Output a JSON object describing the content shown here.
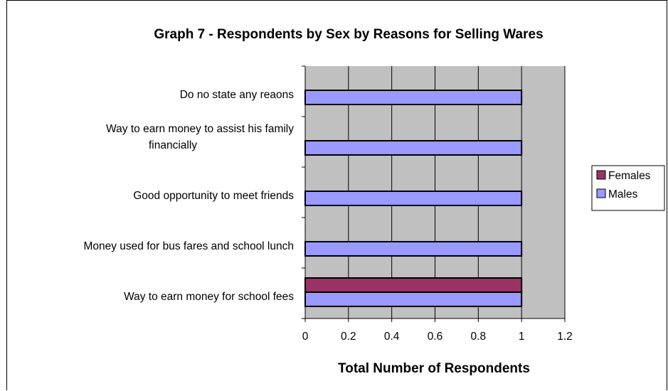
{
  "chart_data": {
    "type": "bar",
    "orientation": "horizontal",
    "title": "Graph 7 - Respondents by Sex by Reasons for Selling Wares",
    "xlabel": "Total Number of Respondents",
    "ylabel": "",
    "categories": [
      "Way to earn money for school fees",
      "Money used for bus fares and school lunch",
      "Good opportunity to meet friends",
      "Way to earn money to assist his family financially",
      "Do no state any reaons"
    ],
    "category_lines": [
      [
        "Way to earn money for school fees"
      ],
      [
        "Money used for bus fares and school lunch"
      ],
      [
        "Good opportunity to meet friends"
      ],
      [
        "Way to earn money to assist his family",
        "financially"
      ],
      [
        "Do no state any reaons"
      ]
    ],
    "series": [
      {
        "name": "Females",
        "color": "#993366",
        "values": [
          1,
          0,
          0,
          0,
          0
        ]
      },
      {
        "name": "Males",
        "color": "#9999ff",
        "values": [
          1,
          1,
          1,
          1,
          1
        ]
      }
    ],
    "xlim": [
      0,
      1.2
    ],
    "xticks": [
      "0",
      "0.2",
      "0.4",
      "0.6",
      "0.8",
      "1",
      "1.2"
    ],
    "plot_background": "#c0c0c0",
    "grid": true,
    "legend_position": "right"
  }
}
